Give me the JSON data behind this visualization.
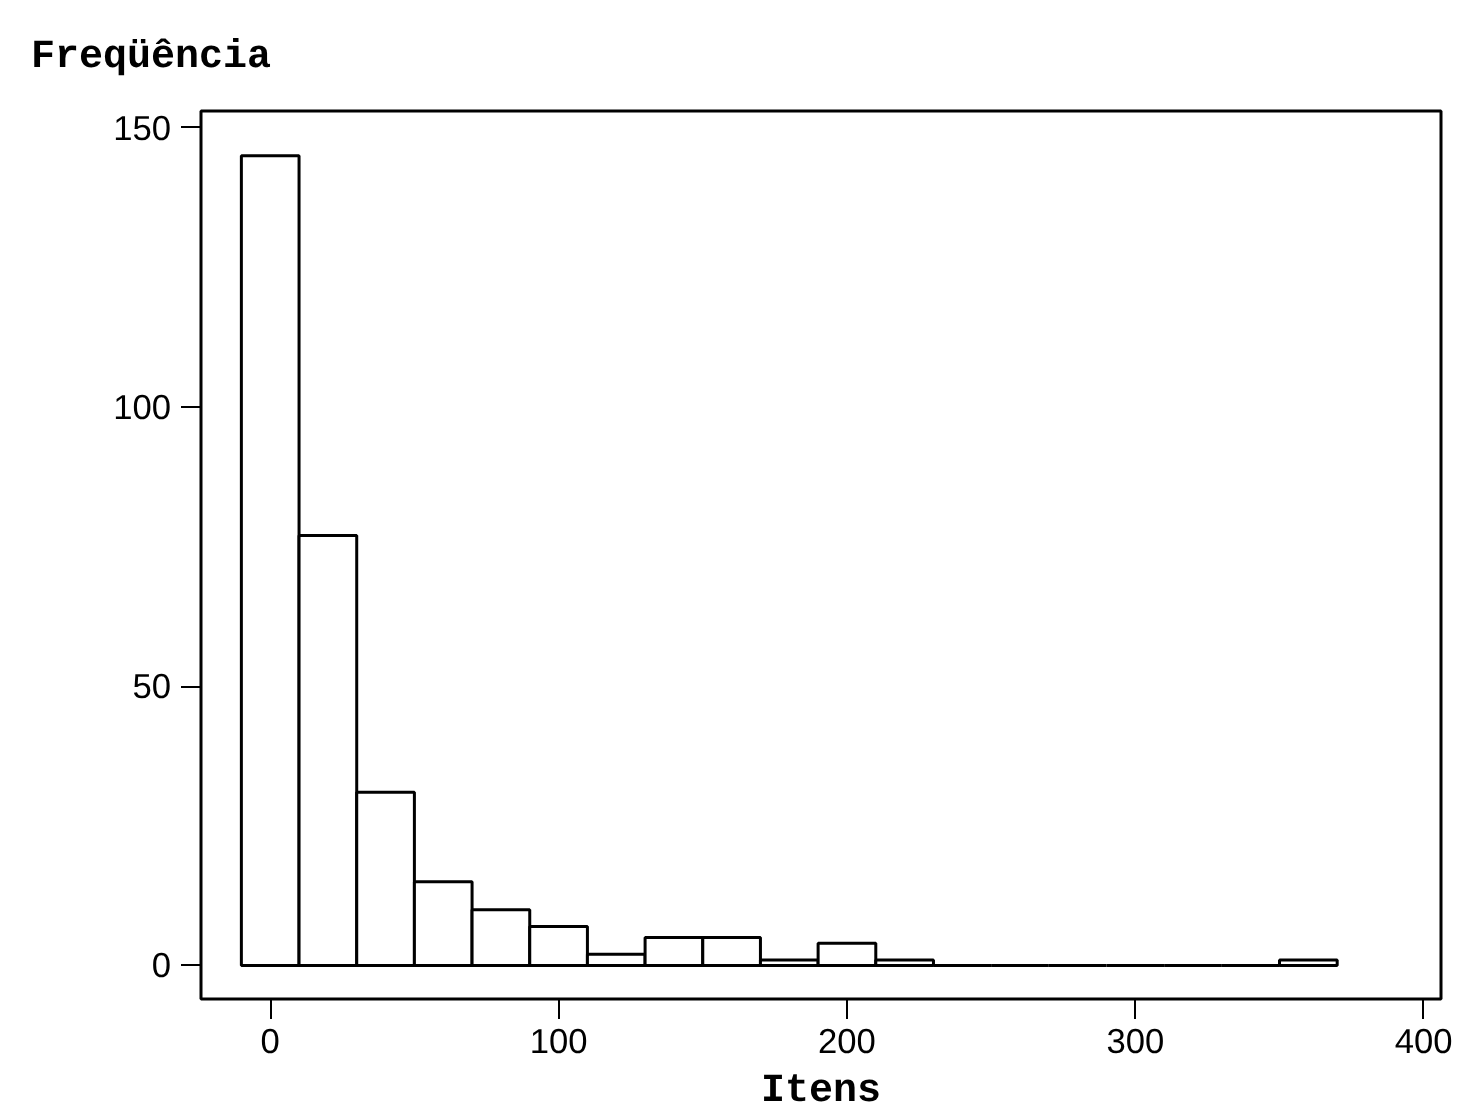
{
  "chart_data": {
    "type": "histogram",
    "ylabel": "Freqüência",
    "xlabel": "Itens",
    "bins": [
      -10,
      10,
      30,
      50,
      70,
      90,
      110,
      130,
      150,
      170,
      190,
      210,
      230,
      250,
      270,
      290,
      310,
      330,
      350,
      370
    ],
    "values": [
      145,
      77,
      31,
      15,
      10,
      7,
      2,
      5,
      5,
      1,
      4,
      1,
      0,
      0,
      0,
      0,
      0,
      0,
      1
    ],
    "xlim": [
      -24,
      406
    ],
    "ylim": [
      -6,
      153
    ],
    "xticks": [
      0,
      100,
      200,
      300,
      400
    ],
    "yticks": [
      0,
      50,
      100,
      150
    ],
    "grid": false
  }
}
